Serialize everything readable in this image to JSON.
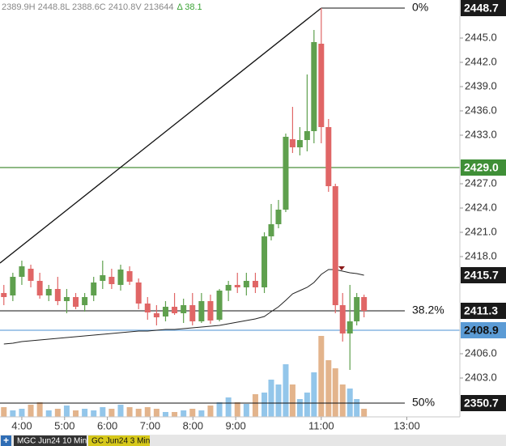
{
  "chart_data": {
    "type": "candlestick",
    "header": {
      "ohlc_text": "2389.9H 2448.8L 2388.6C 2410.8V 213644",
      "change_text": "Δ 38.1"
    },
    "xlim": [
      3.49,
      14.24
    ],
    "xticks": [
      {
        "value": 4,
        "label": "4:00"
      },
      {
        "value": 5,
        "label": "5:00"
      },
      {
        "value": 6,
        "label": "6:00"
      },
      {
        "value": 7,
        "label": "7:00"
      },
      {
        "value": 8,
        "label": "8:00"
      },
      {
        "value": 9,
        "label": "9:00"
      },
      {
        "value": 11,
        "label": "11:00"
      },
      {
        "value": 13,
        "label": "13:00"
      }
    ],
    "ylim": [
      2398.2,
      2449.7
    ],
    "yticks": [
      {
        "value": 2445,
        "label": "2445.0"
      },
      {
        "value": 2442,
        "label": "2442.0"
      },
      {
        "value": 2439,
        "label": "2439.0"
      },
      {
        "value": 2436,
        "label": "2436.0"
      },
      {
        "value": 2433,
        "label": "2433.0"
      },
      {
        "value": 2427,
        "label": "2427.0"
      },
      {
        "value": 2424,
        "label": "2424.0"
      },
      {
        "value": 2421,
        "label": "2421.0"
      },
      {
        "value": 2418,
        "label": "2418.0"
      },
      {
        "value": 2406,
        "label": "2406.0"
      },
      {
        "value": 2403,
        "label": "2403.0"
      }
    ],
    "vlim": [
      0,
      120
    ],
    "up_color": "#5fa04e",
    "down_color": "#e06666",
    "volume_up_color": "#93c6ea",
    "volume_down_color": "#e3b48c",
    "x": [
      3.58,
      3.79,
      4.0,
      4.21,
      4.42,
      4.63,
      4.84,
      5.05,
      5.26,
      5.47,
      5.68,
      5.89,
      6.1,
      6.31,
      6.52,
      6.73,
      6.94,
      7.15,
      7.36,
      7.57,
      7.78,
      7.99,
      8.2,
      8.41,
      8.62,
      8.83,
      9.04,
      9.25,
      9.46,
      9.67,
      9.83,
      10.0,
      10.17,
      10.33,
      10.5,
      10.67,
      10.83,
      11.0,
      11.17,
      11.33,
      11.5,
      11.67,
      11.83,
      12.0
    ],
    "open": [
      2413.5,
      2413.2,
      2415.5,
      2416.5,
      2415,
      2413.2,
      2414,
      2412.5,
      2413,
      2412,
      2413.2,
      2415,
      2415.5,
      2414.5,
      2416.2,
      2414.8,
      2412.2,
      2411,
      2410.6,
      2411.8,
      2411,
      2412,
      2410,
      2412.5,
      2410.2,
      2413.8,
      2414.5,
      2414.2,
      2415,
      2414.2,
      2420.5,
      2422,
      2423.8,
      2432.5,
      2431.5,
      2432.4,
      2433.5,
      2444.3,
      2434,
      2426.7,
      2412,
      2408.5,
      2410,
      2413
    ],
    "high": [
      2414.5,
      2416,
      2417.5,
      2417,
      2416,
      2414.5,
      2415.5,
      2414,
      2413.5,
      2413.5,
      2415.5,
      2417.5,
      2416.5,
      2417,
      2416.8,
      2415.3,
      2413,
      2412,
      2412.5,
      2413.5,
      2412.8,
      2413.5,
      2413.5,
      2413.3,
      2414,
      2415,
      2416,
      2416,
      2416,
      2421,
      2424.5,
      2425,
      2433.2,
      2436.5,
      2434,
      2440.5,
      2446,
      2448.7,
      2435,
      2427,
      2413.5,
      2414.5,
      2413.5,
      2413.3
    ],
    "low": [
      2412,
      2412.5,
      2414.5,
      2414.2,
      2412.8,
      2412.5,
      2412,
      2411,
      2411.5,
      2411.2,
      2412.5,
      2414,
      2414,
      2413.8,
      2414.5,
      2411.5,
      2410.2,
      2409.5,
      2410,
      2410.8,
      2409.8,
      2409.5,
      2409.8,
      2409.7,
      2410,
      2412.5,
      2413.5,
      2413.2,
      2413.5,
      2413.5,
      2420,
      2421.5,
      2423.5,
      2430.8,
      2430.5,
      2431,
      2432,
      2432,
      2426,
      2411,
      2407.5,
      2404,
      2409.5,
      2410.5
    ],
    "close": [
      2413,
      2415.5,
      2416.8,
      2415,
      2413.2,
      2414,
      2412.5,
      2413,
      2411.8,
      2413,
      2414.8,
      2415.7,
      2414.6,
      2416.4,
      2414.9,
      2412.2,
      2411.1,
      2410.5,
      2411.8,
      2411,
      2412,
      2410,
      2412.5,
      2410.1,
      2413.8,
      2414.5,
      2414.2,
      2415,
      2414.2,
      2420.5,
      2422,
      2423.8,
      2432.8,
      2431.5,
      2432.4,
      2433.5,
      2444.5,
      2434,
      2426.7,
      2412,
      2408.5,
      2410,
      2413,
      2411.3
    ],
    "volume": [
      12,
      8,
      10,
      15,
      18,
      8,
      10,
      14,
      8,
      10,
      8,
      12,
      10,
      15,
      12,
      10,
      12,
      10,
      6,
      6,
      8,
      10,
      8,
      14,
      18,
      24,
      18,
      16,
      28,
      30,
      46,
      40,
      65,
      40,
      22,
      30,
      55,
      100,
      70,
      60,
      40,
      35,
      22,
      10
    ],
    "moving_average": {
      "color": "#222222",
      "values": [
        2407.2,
        2407.3,
        2407.5,
        2407.6,
        2407.7,
        2407.8,
        2407.9,
        2408,
        2408.1,
        2408.2,
        2408.3,
        2408.4,
        2408.5,
        2408.6,
        2408.7,
        2408.8,
        2408.8,
        2408.9,
        2409,
        2409,
        2409.1,
        2409.2,
        2409.3,
        2409.4,
        2409.5,
        2409.7,
        2409.9,
        2410.1,
        2410.3,
        2410.6,
        2411.2,
        2411.8,
        2412.6,
        2413.4,
        2413.8,
        2414.2,
        2414.8,
        2415.8,
        2416.4,
        2416.4,
        2416.2,
        2416,
        2415.9,
        2415.7
      ]
    },
    "fib_levels": [
      {
        "label": "0%",
        "value": 2448.7
      },
      {
        "label": "38.2%",
        "value": 2411.3
      },
      {
        "label": "50%",
        "value": 2350.7
      }
    ],
    "lines": [
      {
        "value": 2429,
        "color": "#4a8f3a"
      },
      {
        "value": 2408.9,
        "color": "#6fa8dc"
      }
    ],
    "price_flags": [
      {
        "value": 2448.7,
        "label": "2448.7",
        "bg": "#1a1a1a",
        "fg": "#ffffff"
      },
      {
        "value": 2429,
        "label": "2429.0",
        "bg": "#3f8f37",
        "fg": "#ffffff"
      },
      {
        "value": 2415.7,
        "label": "2415.7",
        "bg": "#1a1a1a",
        "fg": "#ffffff"
      },
      {
        "value": 2411.3,
        "label": "2411.3",
        "bg": "#1a1a1a",
        "fg": "#ffffff"
      },
      {
        "value": 2408.9,
        "label": "2408.9",
        "bg": "#5b9bd5",
        "fg": "#111111"
      },
      {
        "value": 2350.7,
        "label": "2350.7",
        "bg": "#1a1a1a",
        "fg": "#ffffff"
      }
    ],
    "tabs": [
      {
        "label": "MGC Jun24 10 Min",
        "bg": "#333333",
        "fg": "#ffffff"
      },
      {
        "label": "GC Jun24 3 Min",
        "bg": "#d6c81a",
        "fg": "#111111"
      }
    ],
    "add_button": "+"
  }
}
